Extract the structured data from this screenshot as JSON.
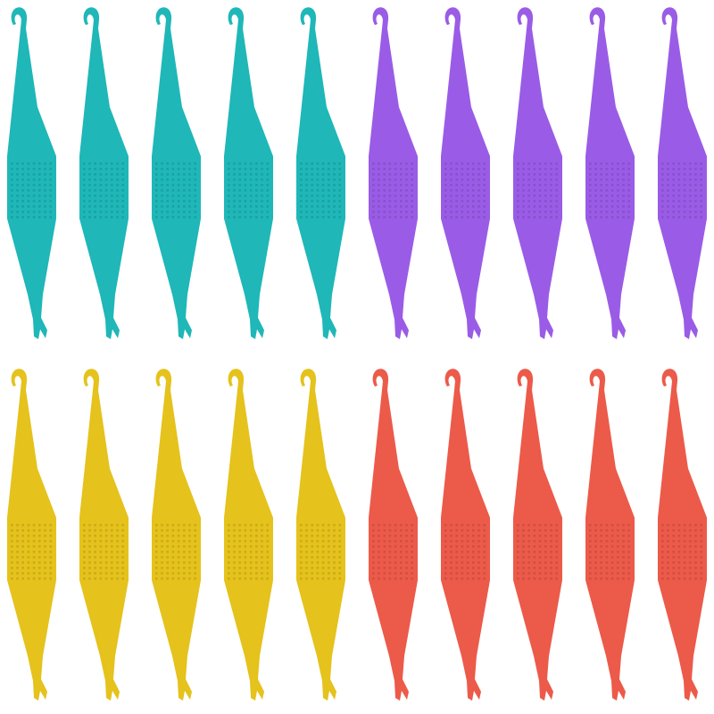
{
  "product_groups": [
    {
      "color": "#1fb7b8",
      "count": 5
    },
    {
      "color": "#9a5ce6",
      "count": 5
    },
    {
      "color": "#e5c21c",
      "count": 5
    },
    {
      "color": "#ec5a4a",
      "count": 5
    }
  ],
  "background": "#ffffff"
}
